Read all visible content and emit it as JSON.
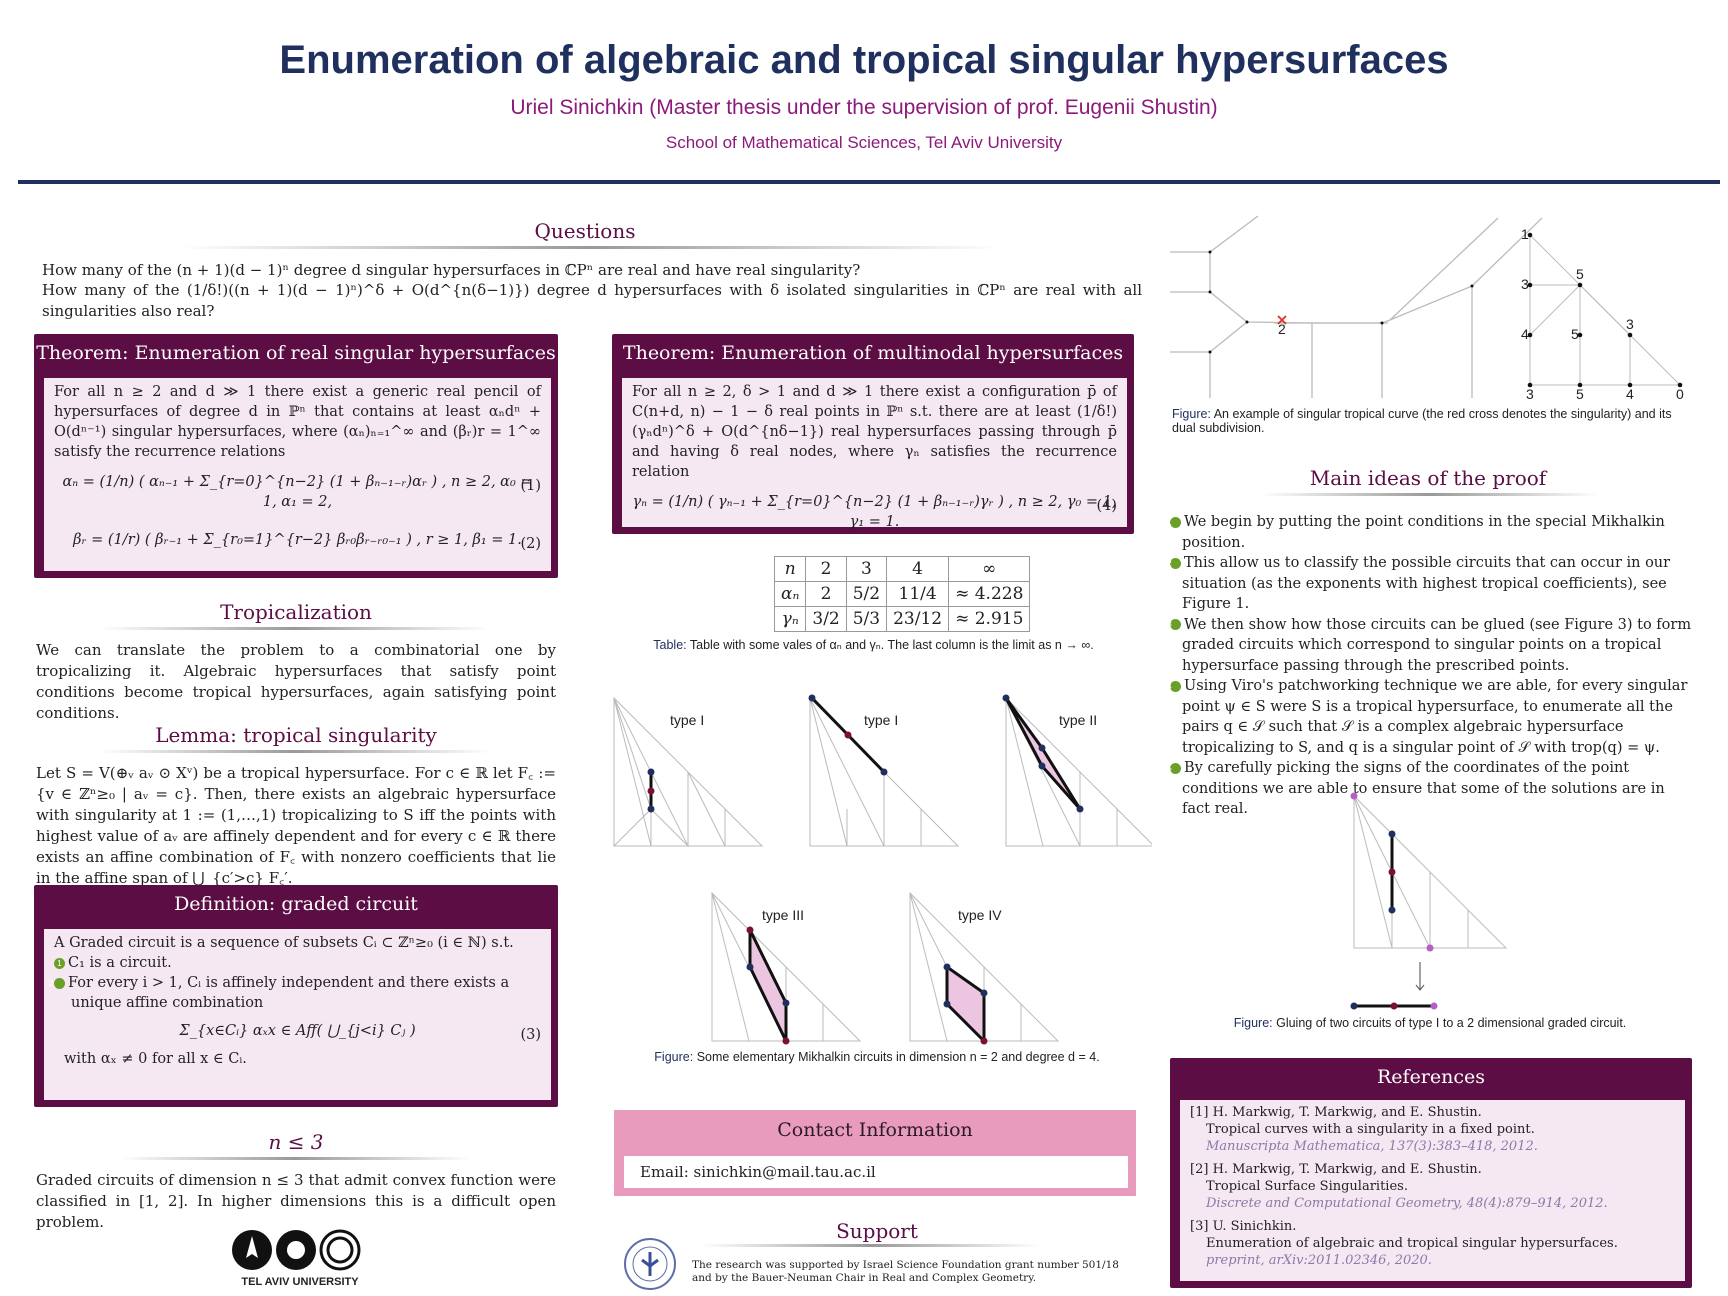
{
  "header": {
    "title": "Enumeration of algebraic and tropical singular hypersurfaces",
    "authors": "Uriel Sinichkin (Master thesis under the supervision of prof. Eugenii Shustin)",
    "affiliation": "School of Mathematical Sciences, Tel Aviv University"
  },
  "questions": {
    "heading": "Questions",
    "q1": "How many of the (n + 1)(d − 1)ⁿ degree d singular hypersurfaces in ℂPⁿ are real and have real singularity?",
    "q2": "How many of the (1/δ!)((n + 1)(d − 1)ⁿ)^δ + O(d^{n(δ−1)}) degree d hypersurfaces with δ isolated singularities in ℂPⁿ are real with all singularities also real?"
  },
  "theorem1": {
    "heading": "Theorem: Enumeration of real singular hypersurfaces",
    "body": "For all n ≥ 2 and d ≫ 1 there exist a generic real pencil of hypersurfaces of degree d in ℙⁿ that contains at least αₙdⁿ + O(dⁿ⁻¹) singular hypersurfaces, where (αₙ)ₙ₌₁^∞ and (βᵣ)r = 1^∞ satisfy the recurrence relations",
    "eq1": "αₙ = (1/n) ( αₙ₋₁ + Σ_{r=0}^{n−2} (1 + βₙ₋₁₋ᵣ)αᵣ ) ,   n ≥ 2,   α₀ = 1,  α₁ = 2,",
    "eq1_num": "(1)",
    "eq2": "βᵣ = (1/r) ( βᵣ₋₁ + Σ_{r₀=1}^{r−2} βᵣ₀βᵣ₋ᵣ₀₋₁ ) ,   r ≥ 1,   β₁ = 1.",
    "eq2_num": "(2)"
  },
  "tropicalization": {
    "heading": "Tropicalization",
    "body": "We can translate the problem to a combinatorial one by tropicalizing it. Algebraic hypersurfaces that satisfy point conditions become tropical hypersurfaces, again satisfying point conditions."
  },
  "lemma": {
    "heading": "Lemma: tropical singularity",
    "body": "Let S = V(⊕ᵥ aᵥ ⊙ Xᵛ) be a tropical hypersurface. For c ∈ ℝ let F꜀ := {v ∈ ℤⁿ≥₀ | aᵥ = c}. Then, there exists an algebraic hypersurface with singularity at 1 := (1,…,1) tropicalizing to S iff the points with highest value of aᵥ are affinely dependent and for every c ∈ ℝ there exists an affine combination of F꜀ with nonzero coefficients that lie in the affine span of ⋃_{c′>c} F꜀′."
  },
  "definition": {
    "heading": "Definition: graded circuit",
    "intro": "A Graded circuit is a sequence of subsets Cᵢ ⊂ ℤⁿ≥₀ (i ∈ ℕ) s.t.",
    "item1": "C₁ is a circuit.",
    "item2": "For every i > 1, Cᵢ is affinely independent and there exists a unique affine combination",
    "eq3": "Σ_{x∈Cᵢ} αₓx ∈ Aff( ⋃_{j<i} Cⱼ )",
    "eq3_num": "(3)",
    "tail": "with αₓ ≠ 0 for all x ∈ Cᵢ."
  },
  "nle3": {
    "heading": "n ≤ 3",
    "body": "Graded circuits of dimension n ≤ 3 that admit convex function were classified in [1, 2]. In higher dimensions this is a difficult open problem."
  },
  "logo": {
    "text": "TEL AVIV UNIVERSITY"
  },
  "theorem2": {
    "heading": "Theorem: Enumeration of multinodal hypersurfaces",
    "body": "For all n ≥ 2, δ > 1 and d ≫ 1 there exist a configuration p̄ of C(n+d, n) − 1 − δ real points in ℙⁿ s.t. there are at least (1/δ!)(γₙdⁿ)^δ + O(d^{nδ−1}) real hypersurfaces passing through p̄ and having δ real nodes, where γₙ satisfies the recurrence relation",
    "eq4": "γₙ = (1/n) ( γₙ₋₁ + Σ_{r=0}^{n−2} (1 + βₙ₋₁₋ᵣ)γᵣ ) ,   n ≥ 2,   γ₀ = 1,  γ₁ = 1.",
    "eq4_num": "(4)"
  },
  "table": {
    "header": [
      "n",
      "2",
      "3",
      "4",
      "∞"
    ],
    "rows": [
      [
        "αₙ",
        "2",
        "5/2",
        "11/4",
        "≈ 4.228"
      ],
      [
        "γₙ",
        "3/2",
        "5/3",
        "23/12",
        "≈ 2.915"
      ]
    ],
    "caption_label": "Table:",
    "caption": "Table with some vales of αₙ and γₙ. The last column is the limit as n → ∞."
  },
  "circuits_figure": {
    "labels": [
      "type I",
      "type I",
      "type II",
      "type III",
      "type IV"
    ],
    "caption_label": "Figure:",
    "caption": "Some elementary Mikhalkin circuits in dimension n = 2 and degree d = 4."
  },
  "contact": {
    "heading": "Contact Information",
    "email": "Email: sinichkin@mail.tau.ac.il"
  },
  "support": {
    "heading": "Support",
    "body": "The research was supported by Israel Science Foundation grant number 501/18 and by the Bauer-Neuman Chair in Real and Complex Geometry."
  },
  "tropical_figure": {
    "labels": [
      "2",
      "1",
      "3",
      "5",
      "4",
      "5",
      "3",
      "3",
      "5",
      "4",
      "0"
    ],
    "caption_label": "Figure:",
    "caption": "An example of singular tropical curve (the red cross denotes the singularity) and its dual subdivision."
  },
  "main_ideas": {
    "heading": "Main ideas of the proof",
    "items": [
      "We begin by putting the point conditions in the special Mikhalkin position.",
      "This allow us to classify the possible circuits that can occur in our situation (as the exponents with highest tropical coefficients), see Figure 1.",
      "We then show how those circuits can be glued (see Figure 3) to form graded circuits which correspond to singular points on a tropical hypersurface passing through the prescribed points.",
      "Using Viro's patchworking technique we are able, for every singular point ψ ∈ S were S is a tropical hypersurface, to enumerate all the pairs q ∈ 𝒮 such that 𝒮 is a complex algebraic hypersurface tropicalizing to S, and q is a singular point of 𝒮 with trop(q) = ψ.",
      "By carefully picking the signs of the coordinates of the point conditions we are able to ensure that some of the solutions are in fact real."
    ]
  },
  "gluing_figure": {
    "caption_label": "Figure:",
    "caption": "Gluing of two circuits of type I to a 2 dimensional graded circuit."
  },
  "references": {
    "heading": "References",
    "items": [
      {
        "num": "[1]",
        "authors": "H. Markwig, T. Markwig, and E. Shustin.",
        "title": "Tropical curves with a singularity in a fixed point.",
        "venue": "Manuscripta Mathematica, 137(3):383–418, 2012."
      },
      {
        "num": "[2]",
        "authors": "H. Markwig, T. Markwig, and E. Shustin.",
        "title": "Tropical Surface Singularities.",
        "venue": "Discrete and Computational Geometry, 48(4):879–914, 2012."
      },
      {
        "num": "[3]",
        "authors": "U. Sinichkin.",
        "title": "Enumeration of algebraic and tropical singular hypersurfaces.",
        "venue": "preprint, arXiv:2011.02346, 2020."
      }
    ]
  },
  "colors": {
    "navy": "#1f2f5e",
    "plum": "#5c0d44",
    "magenta": "#8c1a7a",
    "pink": "#e99bbd",
    "lavender": "#f6e8f2"
  }
}
